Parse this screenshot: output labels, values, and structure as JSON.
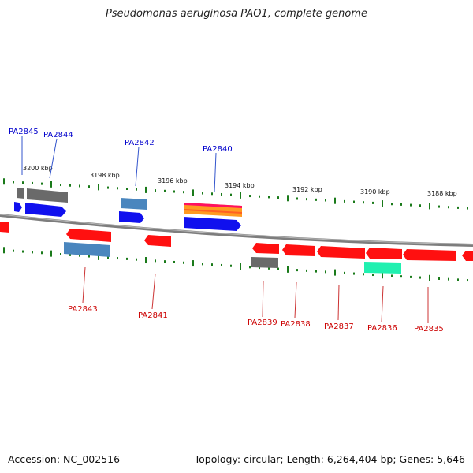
{
  "title": "Pseudomonas aeruginosa PAO1, complete genome",
  "footer": {
    "accession": "Accession: NC_002516",
    "stats": "Topology: circular; Length: 6,264,404 bp; Genes: 5,646"
  },
  "colors": {
    "forward_label": "#0000cc",
    "reverse_label": "#cc0000",
    "tick": "#1a7a1a",
    "backbone": "#8a8a8a",
    "red": "#ff1010",
    "blue": "#1010ee",
    "steel": "#4a86be",
    "gray": "#666666",
    "teal": "#20f0b0"
  },
  "scale": {
    "labels": [
      "3200 kbp",
      "3198 kbp",
      "3196 kbp",
      "3194 kbp",
      "3192 kbp",
      "3190 kbp",
      "3188 kbp"
    ]
  },
  "genes_top": [
    "PA2845",
    "PA2844",
    "PA2842",
    "PA2840"
  ],
  "genes_bottom": [
    "PA2843",
    "PA2841",
    "PA2839",
    "PA2838",
    "PA2837",
    "PA2836",
    "PA2835"
  ]
}
